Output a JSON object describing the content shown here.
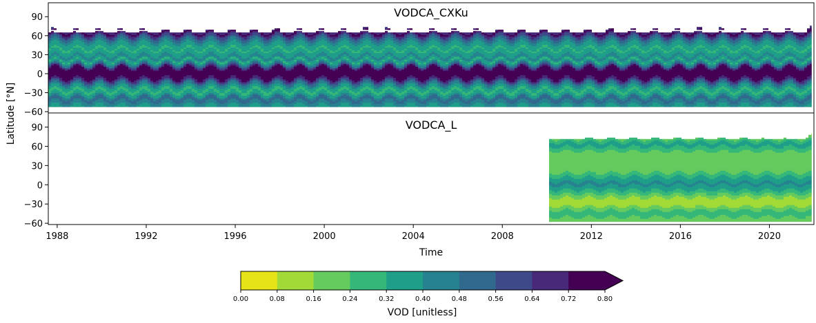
{
  "chart_data": [
    {
      "type": "heatmap",
      "title": "VODCA_CXKu",
      "xlabel": "",
      "ylabel": "Latitude [°N]",
      "xlim": [
        1987.6,
        2022.0
      ],
      "ylim": [
        -62,
        112
      ],
      "x_range": [
        1987.6,
        2021.9
      ],
      "lat_range": [
        -52,
        76
      ],
      "xticks": [
        1988,
        1992,
        1996,
        2000,
        2004,
        2008,
        2012,
        2016,
        2020
      ],
      "yticks": [
        -60,
        -30,
        0,
        30,
        60,
        90
      ],
      "ytick_labels": [
        "−60",
        "−30",
        "0",
        "30",
        "60",
        "90"
      ],
      "lat_profile": [
        {
          "lat": 76,
          "vod": 0.36
        },
        {
          "lat": 70,
          "vod": 0.62
        },
        {
          "lat": 64,
          "vod": 0.76
        },
        {
          "lat": 58,
          "vod": 0.58
        },
        {
          "lat": 50,
          "vod": 0.42
        },
        {
          "lat": 44,
          "vod": 0.34
        },
        {
          "lat": 38,
          "vod": 0.31
        },
        {
          "lat": 32,
          "vod": 0.36
        },
        {
          "lat": 26,
          "vod": 0.44
        },
        {
          "lat": 20,
          "vod": 0.3
        },
        {
          "lat": 14,
          "vod": 0.5
        },
        {
          "lat": 8,
          "vod": 0.78
        },
        {
          "lat": 2,
          "vod": 0.82
        },
        {
          "lat": -4,
          "vod": 0.82
        },
        {
          "lat": -10,
          "vod": 0.66
        },
        {
          "lat": -16,
          "vod": 0.48
        },
        {
          "lat": -22,
          "vod": 0.34
        },
        {
          "lat": -28,
          "vod": 0.3
        },
        {
          "lat": -34,
          "vod": 0.38
        },
        {
          "lat": -40,
          "vod": 0.54
        },
        {
          "lat": -46,
          "vod": 0.44
        },
        {
          "lat": -52,
          "vod": 0.38
        }
      ]
    },
    {
      "type": "heatmap",
      "title": "VODCA_L",
      "xlabel": "Time",
      "ylabel": "",
      "xlim": [
        1987.6,
        2022.0
      ],
      "ylim": [
        -62,
        112
      ],
      "x_range": [
        2010.1,
        2021.9
      ],
      "lat_range": [
        -56,
        80
      ],
      "xticks": [
        1988,
        1992,
        1996,
        2000,
        2004,
        2008,
        2012,
        2016,
        2020
      ],
      "yticks": [
        -60,
        -30,
        0,
        30,
        60,
        90
      ],
      "ytick_labels": [
        "−60",
        "−30",
        "0",
        "30",
        "60",
        "90"
      ],
      "lat_profile": [
        {
          "lat": 80,
          "vod": 0.1
        },
        {
          "lat": 74,
          "vod": 0.18
        },
        {
          "lat": 68,
          "vod": 0.3
        },
        {
          "lat": 62,
          "vod": 0.36
        },
        {
          "lat": 56,
          "vod": 0.28
        },
        {
          "lat": 50,
          "vod": 0.22
        },
        {
          "lat": 44,
          "vod": 0.19
        },
        {
          "lat": 38,
          "vod": 0.17
        },
        {
          "lat": 32,
          "vod": 0.19
        },
        {
          "lat": 26,
          "vod": 0.18
        },
        {
          "lat": 20,
          "vod": 0.22
        },
        {
          "lat": 14,
          "vod": 0.3
        },
        {
          "lat": 8,
          "vod": 0.36
        },
        {
          "lat": 2,
          "vod": 0.42
        },
        {
          "lat": -4,
          "vod": 0.38
        },
        {
          "lat": -10,
          "vod": 0.3
        },
        {
          "lat": -16,
          "vod": 0.22
        },
        {
          "lat": -22,
          "vod": 0.14
        },
        {
          "lat": -28,
          "vod": 0.12
        },
        {
          "lat": -34,
          "vod": 0.16
        },
        {
          "lat": -40,
          "vod": 0.24
        },
        {
          "lat": -46,
          "vod": 0.3
        },
        {
          "lat": -52,
          "vod": 0.22
        }
      ]
    }
  ],
  "colorbar": {
    "label": "VOD [unitless]",
    "ticks": [
      "0.00",
      "0.08",
      "0.16",
      "0.24",
      "0.32",
      "0.40",
      "0.48",
      "0.56",
      "0.64",
      "0.72",
      "0.80"
    ],
    "levels": [
      0,
      0.08,
      0.16,
      0.24,
      0.32,
      0.4,
      0.48,
      0.56,
      0.64,
      0.72,
      0.8
    ],
    "colors": [
      "#e6e419",
      "#a2da37",
      "#65cb5e",
      "#35b779",
      "#1f9e89",
      "#26828e",
      "#31688e",
      "#3e4989",
      "#482878",
      "#440154"
    ],
    "extend": "max"
  }
}
